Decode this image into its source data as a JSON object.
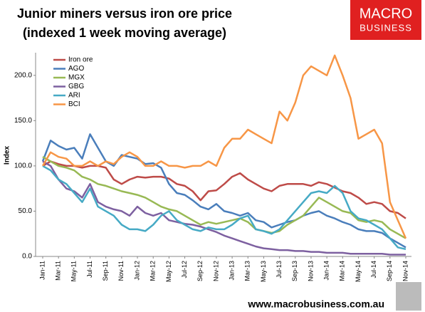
{
  "chart_data": {
    "type": "line",
    "title": "Junior miners versus iron ore price",
    "subtitle": "(indexed 1 week moving average)",
    "y_label": "Index",
    "logo": [
      "MACRO",
      "BUSINESS"
    ],
    "footer": "www.macrobusiness.com.au",
    "categories": [
      "Jan-11",
      null,
      "Mar-11",
      null,
      "May-11",
      null,
      "Jul-11",
      null,
      "Sep-11",
      null,
      "Nov-11",
      null,
      "Jan-12",
      null,
      "Mar-12",
      null,
      "May-12",
      null,
      "Jul-12",
      null,
      "Sep-12",
      null,
      "Nov-12",
      null,
      "Jan-13",
      null,
      "Mar-13",
      null,
      "May-13",
      null,
      "Jul-13",
      null,
      "Sep-13",
      null,
      "Nov-13",
      null,
      "Jan-14",
      null,
      "Mar-14",
      null,
      "May-14",
      null,
      "Jul-14",
      null,
      "Sep-14",
      null,
      "Nov-14"
    ],
    "series": [
      {
        "name": "Iron ore",
        "color": "#be4b48",
        "values": [
          100,
          105,
          102,
          100,
          100,
          98,
          100,
          100,
          98,
          85,
          80,
          85,
          88,
          87,
          88,
          88,
          86,
          80,
          78,
          72,
          62,
          72,
          73,
          80,
          88,
          92,
          85,
          80,
          75,
          72,
          78,
          80,
          80,
          80,
          78,
          82,
          80,
          76,
          72,
          70,
          65,
          58,
          60,
          58,
          50,
          48,
          42
        ]
      },
      {
        "name": "AGO",
        "color": "#4a7ebb",
        "values": [
          105,
          128,
          122,
          118,
          120,
          108,
          135,
          120,
          105,
          100,
          112,
          110,
          108,
          102,
          103,
          98,
          80,
          70,
          68,
          62,
          55,
          52,
          58,
          50,
          48,
          45,
          48,
          40,
          38,
          32,
          35,
          38,
          40,
          45,
          48,
          50,
          45,
          42,
          38,
          35,
          30,
          28,
          28,
          26,
          20,
          15,
          10
        ]
      },
      {
        "name": "MGX",
        "color": "#98b954",
        "values": [
          110,
          105,
          100,
          98,
          95,
          88,
          85,
          80,
          78,
          75,
          72,
          70,
          68,
          65,
          60,
          55,
          52,
          50,
          45,
          40,
          35,
          38,
          36,
          38,
          40,
          42,
          38,
          30,
          28,
          26,
          28,
          35,
          40,
          45,
          55,
          65,
          60,
          55,
          50,
          48,
          40,
          38,
          40,
          38,
          30,
          25,
          20
        ]
      },
      {
        "name": "GBG",
        "color": "#7d60a0",
        "values": [
          105,
          100,
          85,
          75,
          72,
          65,
          80,
          60,
          55,
          52,
          50,
          45,
          55,
          48,
          45,
          48,
          40,
          38,
          36,
          35,
          33,
          30,
          27,
          23,
          20,
          17,
          14,
          11,
          9,
          8,
          7,
          7,
          6,
          6,
          5,
          5,
          4,
          4,
          4,
          3,
          3,
          3,
          3,
          3,
          2,
          2,
          2
        ]
      },
      {
        "name": "ARI",
        "color": "#46aac5",
        "values": [
          100,
          95,
          85,
          80,
          70,
          60,
          75,
          55,
          50,
          45,
          35,
          30,
          30,
          28,
          35,
          45,
          50,
          40,
          35,
          30,
          28,
          32,
          30,
          30,
          35,
          42,
          45,
          30,
          28,
          25,
          30,
          40,
          50,
          60,
          70,
          72,
          70,
          78,
          70,
          50,
          42,
          40,
          35,
          30,
          20,
          10,
          8
        ]
      },
      {
        "name": "BCI",
        "color": "#f79646",
        "values": [
          100,
          115,
          110,
          108,
          100,
          100,
          105,
          100,
          105,
          102,
          110,
          115,
          110,
          100,
          100,
          105,
          100,
          100,
          98,
          100,
          100,
          105,
          100,
          120,
          130,
          130,
          140,
          135,
          130,
          125,
          160,
          150,
          170,
          200,
          210,
          205,
          200,
          222,
          200,
          175,
          130,
          135,
          140,
          125,
          60,
          40,
          20
        ]
      }
    ],
    "ylim": [
      0,
      225
    ],
    "yticks": [
      {
        "value": 0,
        "label": "0.0"
      },
      {
        "value": 50,
        "label": "50.0"
      },
      {
        "value": 100,
        "label": "100.0"
      },
      {
        "value": 150,
        "label": "150.0"
      },
      {
        "value": 200,
        "label": "200.0"
      }
    ],
    "legend": "top-left"
  }
}
